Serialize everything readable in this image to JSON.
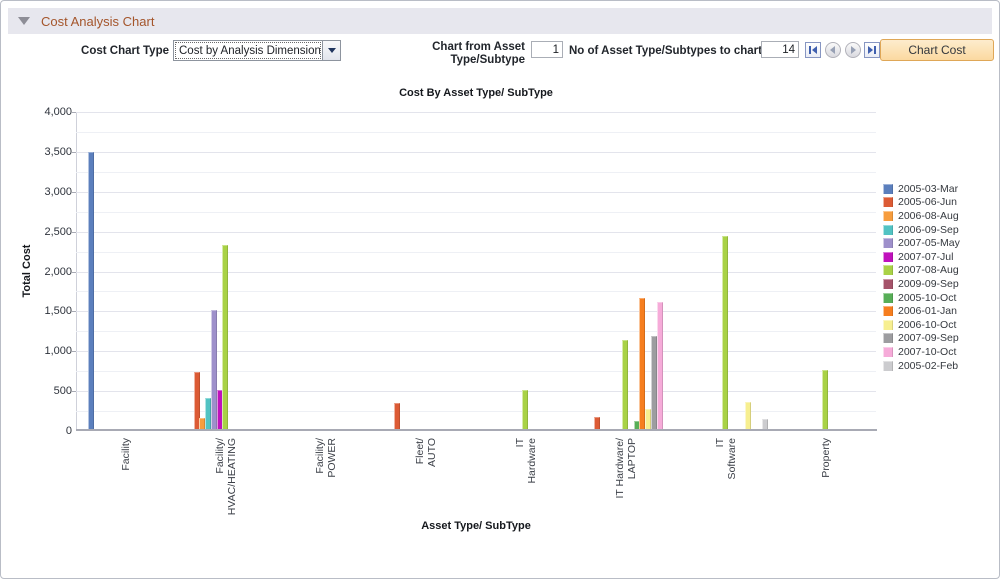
{
  "panel": {
    "title": "Cost Analysis Chart"
  },
  "toolbar": {
    "chart_type_label": "Cost Chart Type",
    "chart_type_value": "Cost by Analysis Dimension",
    "from_label": "Chart from Asset\nType/Subtype",
    "from_value": "1",
    "count_label": "No of Asset Type/Subtypes to chart",
    "count_value": "14",
    "chart_cost_button": "Chart Cost",
    "nav_icons": [
      "first-record-icon",
      "previous-record-icon",
      "next-record-icon",
      "last-record-icon"
    ]
  },
  "chart_data": {
    "type": "bar",
    "title": "Cost By Asset Type/ SubType",
    "xlabel": "Asset Type/ SubType",
    "ylabel": "Total Cost",
    "ylim": [
      0,
      4000
    ],
    "ytick_step": 500,
    "grid_step": 250,
    "grid": true,
    "legend_position": "right",
    "categories": [
      "Facility",
      "Facility/\nHVAC/HEATING",
      "Facility/\nPOWER",
      "Fleet/\nAUTO",
      "IT\nHardware",
      "IT Hardware/\nLAPTOP",
      "IT\nSoftware",
      "Property"
    ],
    "series": [
      {
        "name": "2005-03-Mar",
        "color": "#5b7fbd",
        "values": [
          3500,
          0,
          0,
          0,
          0,
          0,
          0,
          0
        ]
      },
      {
        "name": "2005-06-Jun",
        "color": "#dc5b35",
        "values": [
          0,
          740,
          0,
          350,
          0,
          180,
          0,
          0
        ]
      },
      {
        "name": "2006-08-Aug",
        "color": "#f79d3e",
        "values": [
          0,
          160,
          0,
          0,
          0,
          0,
          0,
          0
        ]
      },
      {
        "name": "2006-09-Sep",
        "color": "#52c3c3",
        "values": [
          0,
          410,
          0,
          0,
          0,
          0,
          0,
          0
        ]
      },
      {
        "name": "2007-05-May",
        "color": "#9e90cb",
        "values": [
          0,
          1520,
          0,
          0,
          0,
          0,
          0,
          0
        ]
      },
      {
        "name": "2007-07-Jul",
        "color": "#c011bc",
        "values": [
          0,
          520,
          0,
          0,
          0,
          0,
          0,
          0
        ]
      },
      {
        "name": "2007-08-Aug",
        "color": "#a9d246",
        "values": [
          0,
          2330,
          0,
          0,
          510,
          1140,
          2450,
          770
        ]
      },
      {
        "name": "2009-09-Sep",
        "color": "#a5536a",
        "values": [
          0,
          0,
          0,
          0,
          0,
          0,
          0,
          0
        ]
      },
      {
        "name": "2005-10-Oct",
        "color": "#57ae57",
        "values": [
          0,
          0,
          0,
          0,
          0,
          120,
          0,
          0
        ]
      },
      {
        "name": "2006-01-Jan",
        "color": "#f67e1f",
        "values": [
          0,
          0,
          0,
          0,
          0,
          1670,
          0,
          0
        ]
      },
      {
        "name": "2006-10-Oct",
        "color": "#f7ef90",
        "values": [
          0,
          0,
          0,
          0,
          0,
          270,
          360,
          0
        ]
      },
      {
        "name": "2007-09-Sep",
        "color": "#9d9da0",
        "values": [
          0,
          0,
          0,
          0,
          0,
          1190,
          0,
          0
        ]
      },
      {
        "name": "2007-10-Oct",
        "color": "#f6abd9",
        "values": [
          0,
          0,
          0,
          0,
          0,
          1620,
          0,
          0
        ]
      },
      {
        "name": "2005-02-Feb",
        "color": "#cccccf",
        "values": [
          0,
          0,
          0,
          0,
          0,
          0,
          150,
          0
        ]
      }
    ]
  }
}
